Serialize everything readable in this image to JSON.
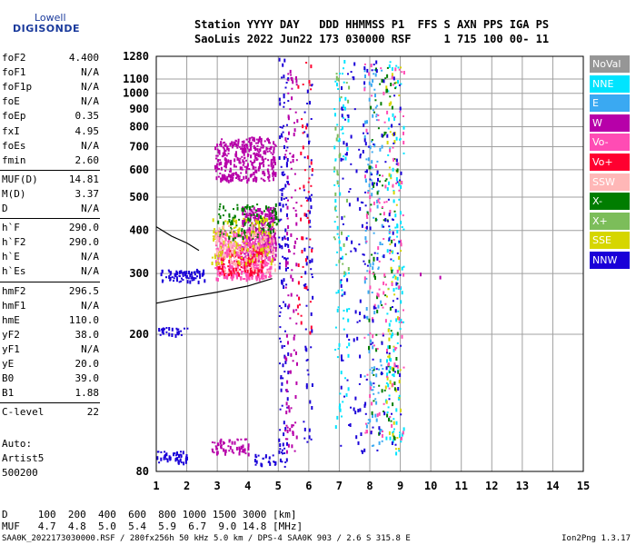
{
  "logo": {
    "brand": "Lowell",
    "name": "DIGISONDE"
  },
  "header": {
    "line1": "Station YYYY DAY   DDD HHMMSS P1  FFS S AXN PPS IGA PS",
    "line2": "SaoLuis 2022 Jun22 173 030000 RSF     1 715 100 00- 11"
  },
  "params": [
    {
      "label": "foF2",
      "value": "4.400"
    },
    {
      "label": "foF1",
      "value": "N/A"
    },
    {
      "label": "foF1p",
      "value": "N/A"
    },
    {
      "label": "foE",
      "value": "N/A"
    },
    {
      "label": "foEp",
      "value": "0.35"
    },
    {
      "label": "fxI",
      "value": "4.95"
    },
    {
      "label": "foEs",
      "value": "N/A"
    },
    {
      "label": "fmin",
      "value": "2.60"
    },
    {
      "label": "MUF(D)",
      "value": "14.81"
    },
    {
      "label": "M(D)",
      "value": "3.37"
    },
    {
      "label": "D",
      "value": "N/A"
    },
    {
      "label": "h`F",
      "value": "290.0"
    },
    {
      "label": "h`F2",
      "value": "290.0"
    },
    {
      "label": "h`E",
      "value": "N/A"
    },
    {
      "label": "h`Es",
      "value": "N/A"
    },
    {
      "label": "hmF2",
      "value": "296.5"
    },
    {
      "label": "hmF1",
      "value": "N/A"
    },
    {
      "label": "hmE",
      "value": "110.0"
    },
    {
      "label": "yF2",
      "value": "38.0"
    },
    {
      "label": "yF1",
      "value": "N/A"
    },
    {
      "label": "yE",
      "value": "20.0"
    },
    {
      "label": "B0",
      "value": "39.0"
    },
    {
      "label": "B1",
      "value": "1.88"
    },
    {
      "label": "C-level",
      "value": "22"
    }
  ],
  "footer_left": {
    "line1": "Auto:",
    "line2": "Artist5",
    "line3": "500200"
  },
  "legend": [
    {
      "label": "NoVal",
      "bg": "#969696",
      "fg": "#ffffff"
    },
    {
      "label": "NNE",
      "bg": "#00e4ff",
      "fg": "#ffffff"
    },
    {
      "label": "E",
      "bg": "#3aa9f2",
      "fg": "#ffffff"
    },
    {
      "label": "W",
      "bg": "#b700a9",
      "fg": "#ffffff"
    },
    {
      "label": "Vo-",
      "bg": "#ff4cb4",
      "fg": "#ffffff"
    },
    {
      "label": "Vo+",
      "bg": "#ff0030",
      "fg": "#ffffff"
    },
    {
      "label": "SSW",
      "bg": "#ffb7b7",
      "fg": "#ffffff"
    },
    {
      "label": "X-",
      "bg": "#007d00",
      "fg": "#ffffff"
    },
    {
      "label": "X+",
      "bg": "#7cbd5a",
      "fg": "#ffffff"
    },
    {
      "label": "SSE",
      "bg": "#d6d600",
      "fg": "#ffffff"
    },
    {
      "label": "NNW",
      "bg": "#1a00d8",
      "fg": "#ffffff"
    }
  ],
  "bottom_table": {
    "row1": "D     100  200  400  600  800 1000 1500 3000 [km]",
    "row2": "MUF   4.7  4.8  5.0  5.4  5.9  6.7  9.0 14.8 [MHz]"
  },
  "footer": {
    "source": "SAA0K_2022173030000.RSF / 280fx256h 50 kHz 5.0 km / DPS-4 SAA0K 903 / 2.6 S 315.8 E",
    "version": "Ion2Png 1.3.17"
  },
  "chart_data": {
    "type": "scatter",
    "title": "",
    "xlabel": "",
    "ylabel": "",
    "xlim": [
      1,
      15
    ],
    "ylim": [
      80,
      1280
    ],
    "y_scale": "log",
    "x_ticks": [
      1,
      2,
      3,
      4,
      5,
      6,
      7,
      8,
      9,
      10,
      11,
      12,
      13,
      14,
      15
    ],
    "y_ticks": [
      80,
      200,
      300,
      400,
      500,
      600,
      700,
      800,
      900,
      1000,
      1100,
      1280
    ],
    "grid": true,
    "legend_position": "right",
    "trace_lines": [
      {
        "name": "o-trace",
        "points": [
          [
            1,
            246
          ],
          [
            2,
            256
          ],
          [
            3,
            265
          ],
          [
            4,
            276
          ],
          [
            4.8,
            290
          ]
        ],
        "color": "#000000"
      },
      {
        "name": "upper-trace",
        "points": [
          [
            1,
            410
          ],
          [
            1.5,
            385
          ],
          [
            2,
            368
          ],
          [
            2.4,
            350
          ]
        ],
        "color": "#000000"
      }
    ],
    "clusters": [
      {
        "color": "#b700a9",
        "x": [
          3.8,
          4.9
        ],
        "y": [
          330,
          470
        ],
        "density": 0.85
      },
      {
        "color": "#ff4cb4",
        "x": [
          2.9,
          4.8
        ],
        "y": [
          290,
          400
        ],
        "density": 0.8
      },
      {
        "color": "#ff0030",
        "x": [
          3.0,
          4.5
        ],
        "y": [
          300,
          360
        ],
        "density": 0.5
      },
      {
        "color": "#b700a9",
        "x": [
          2.9,
          4.9
        ],
        "y": [
          560,
          750
        ],
        "density": 0.6
      },
      {
        "color": "#1a00d8",
        "x": [
          1.1,
          2.6
        ],
        "y": [
          285,
          310
        ],
        "density": 0.6
      },
      {
        "color": "#1a00d8",
        "x": [
          1.0,
          2.0
        ],
        "y": [
          200,
          210
        ],
        "density": 0.6
      },
      {
        "color": "#1a00d8",
        "x": [
          1.0,
          2.0
        ],
        "y": [
          85,
          92
        ],
        "density": 0.6
      },
      {
        "color": "#b700a9",
        "x": [
          2.8,
          4.0
        ],
        "y": [
          90,
          100
        ],
        "density": 0.5
      },
      {
        "color": "#1a00d8",
        "x": [
          4.2,
          4.9
        ],
        "y": [
          84,
          90
        ],
        "density": 0.5
      },
      {
        "color": "#007d00",
        "x": [
          3.0,
          5.0
        ],
        "y": [
          380,
          480
        ],
        "density": 0.25
      },
      {
        "color": "#d6d600",
        "x": [
          2.8,
          4.8
        ],
        "y": [
          320,
          440
        ],
        "density": 0.2
      },
      {
        "color": "#ffb7b7",
        "x": [
          2.9,
          4.9
        ],
        "y": [
          300,
          420
        ],
        "density": 0.2
      },
      {
        "color": "#1a00d8",
        "x": [
          5.0,
          5.3
        ],
        "y": [
          82,
          1280
        ],
        "density": 0.18
      },
      {
        "color": "#b700a9",
        "x": [
          5.2,
          5.6
        ],
        "y": [
          90,
          1200
        ],
        "density": 0.12
      },
      {
        "color": "#1a00d8",
        "x": [
          5.8,
          6.1
        ],
        "y": [
          90,
          1100
        ],
        "density": 0.1
      },
      {
        "color": "#ff0030",
        "x": [
          5.6,
          6.1
        ],
        "y": [
          200,
          1250
        ],
        "density": 0.06
      },
      {
        "color": "#00e4ff",
        "x": [
          6.8,
          7.3
        ],
        "y": [
          90,
          1250
        ],
        "density": 0.07
      },
      {
        "color": "#7cbd5a",
        "x": [
          6.8,
          7.3
        ],
        "y": [
          300,
          1200
        ],
        "density": 0.05
      },
      {
        "color": "#3aa9f2",
        "x": [
          7.8,
          8.4
        ],
        "y": [
          90,
          1250
        ],
        "density": 0.08
      },
      {
        "color": "#00e4ff",
        "x": [
          8.5,
          9.1
        ],
        "y": [
          90,
          1250
        ],
        "density": 0.08
      },
      {
        "color": "#d6d600",
        "x": [
          8.5,
          9.0
        ],
        "y": [
          90,
          1200
        ],
        "density": 0.05
      },
      {
        "color": "#007d00",
        "x": [
          7.9,
          8.9
        ],
        "y": [
          100,
          1200
        ],
        "density": 0.04
      },
      {
        "color": "#ff4cb4",
        "x": [
          7.8,
          9.1
        ],
        "y": [
          100,
          1250
        ],
        "density": 0.04
      },
      {
        "color": "#1a00d8",
        "x": [
          7.0,
          9.0
        ],
        "y": [
          90,
          1250
        ],
        "density": 0.04
      },
      {
        "color": "#b700a9",
        "x": [
          9.5,
          10.5
        ],
        "y": [
          295,
          305
        ],
        "density": 0.05
      }
    ]
  }
}
